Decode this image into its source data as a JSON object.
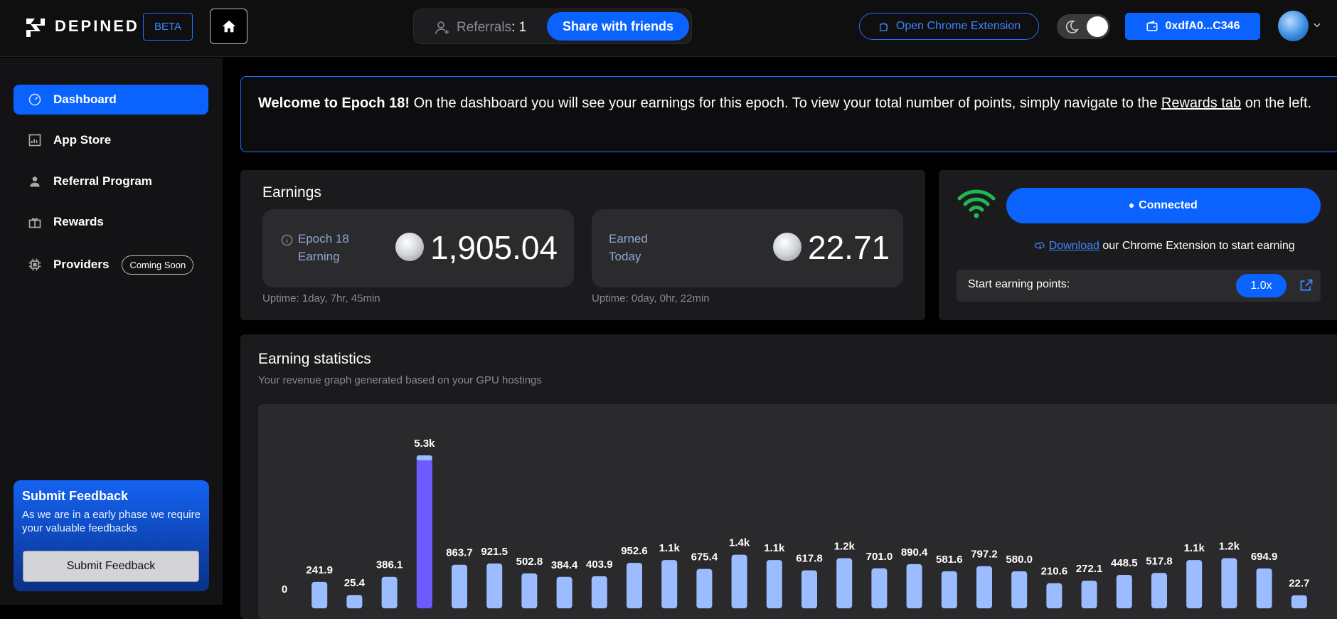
{
  "header": {
    "brand": "DEPINED",
    "beta": "BETA",
    "referrals_label": "Referrals",
    "referrals_count": ": 1",
    "share_label": "Share with friends",
    "extension_label": "Open Chrome Extension",
    "wallet_label": "0xdfA0...C346"
  },
  "sidebar": {
    "items": [
      {
        "label": "Dashboard",
        "icon": "dashboard-icon",
        "active": true
      },
      {
        "label": "App Store",
        "icon": "app-store-icon"
      },
      {
        "label": "Referral Program",
        "icon": "user-icon"
      },
      {
        "label": "Rewards",
        "icon": "gift-icon"
      },
      {
        "label": "Providers",
        "icon": "chip-icon",
        "badge": "Coming Soon"
      }
    ],
    "feedback": {
      "title": "Submit Feedback",
      "text": "As we are in a early phase we require your valuable feedbacks",
      "button": "Submit Feedback"
    }
  },
  "welcome": {
    "bold": "Welcome to Epoch 18!",
    "text": " On the dashboard you will see your earnings for this epoch. To view your total number of points, simply navigate to the ",
    "link": "Rewards tab",
    "tail": " on the left."
  },
  "earnings": {
    "title": "Earnings",
    "epoch_label_1": "Epoch 18",
    "epoch_label_2": "Earning",
    "epoch_value": "1,905.04",
    "epoch_uptime": "Uptime: 1day, 7hr, 45min",
    "today_label_1": "Earned",
    "today_label_2": "Today",
    "today_value": "22.71",
    "today_uptime": "Uptime: 0day, 0hr, 22min"
  },
  "connection": {
    "status": "Connected",
    "download_link": "Download",
    "download_text": " our Chrome Extension to start earning",
    "points_label": "Start earning points:",
    "multiplier": "1.0x"
  },
  "stats": {
    "title": "Earning statistics",
    "subtitle": "Your revenue graph generated based on your GPU hostings"
  },
  "colors": {
    "accent": "#0a63ff",
    "bar": "#9bbcff",
    "bar_highlight": "#6c5cff",
    "wifi": "#1db954"
  },
  "chart_data": {
    "type": "bar",
    "values": [
      0,
      241.9,
      25.4,
      386.1,
      5300,
      863.7,
      921.5,
      502.8,
      384.4,
      403.9,
      952.6,
      1100,
      675.4,
      1400,
      1100,
      617.8,
      1200,
      701.0,
      890.4,
      581.6,
      797.2,
      580.0,
      210.6,
      272.1,
      448.5,
      517.8,
      1100,
      1200,
      694.9,
      22.7
    ],
    "labels": [
      "0",
      "241.9",
      "25.4",
      "386.1",
      "5.3k",
      "863.7",
      "921.5",
      "502.8",
      "384.4",
      "403.9",
      "952.6",
      "1.1k",
      "675.4",
      "1.4k",
      "1.1k",
      "617.8",
      "1.2k",
      "701.0",
      "890.4",
      "581.6",
      "797.2",
      "580.0",
      "210.6",
      "272.1",
      "448.5",
      "517.8",
      "1.1k",
      "1.2k",
      "694.9",
      "22.7"
    ],
    "highlight_index": 4
  }
}
